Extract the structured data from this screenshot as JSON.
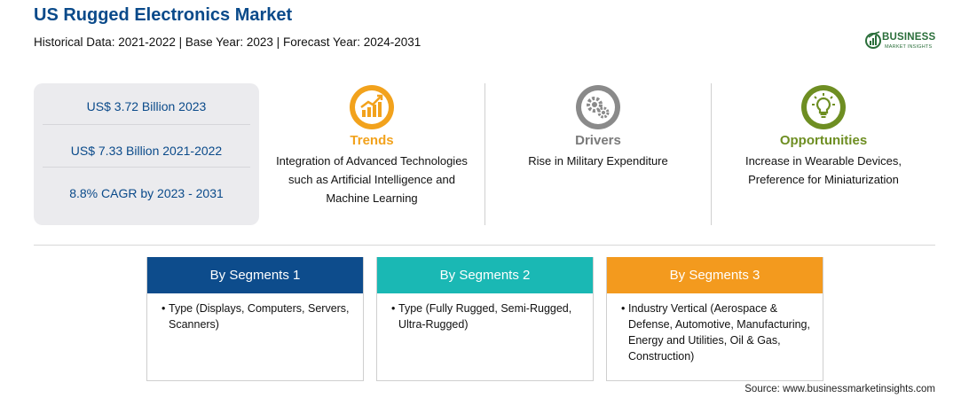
{
  "header": {
    "title": "US Rugged Electronics Market",
    "subtitle": "Historical Data: 2021-2022 | Base Year: 2023 | Forecast Year: 2024-2031"
  },
  "logo": {
    "word": "BUSINESS",
    "sub": "MARKET INSIGHTS",
    "color": "#2a6e3a"
  },
  "stats": [
    "US$ 3.72 Billion 2023",
    "US$ 7.33 Billion 2021-2022",
    "8.8% CAGR by 2023 - 2031"
  ],
  "columns": {
    "trends": {
      "icon": "growth-chart-icon",
      "heading": "Trends",
      "text": "Integration of Advanced Technologies such as Artificial Intelligence and Machine Learning",
      "color": "#f2a21c"
    },
    "drivers": {
      "icon": "gears-icon",
      "heading": "Drivers",
      "text": "Rise in Military Expenditure",
      "color": "#7a7a7a"
    },
    "opportunities": {
      "icon": "lightbulb-icon",
      "heading": "Opportunities",
      "text": "Increase in Wearable Devices, Preference for Miniaturization",
      "color": "#6e8e22"
    }
  },
  "segments": [
    {
      "heading": "By Segments 1",
      "bullet": "•",
      "text": "Type (Displays, Computers, Servers, Scanners)",
      "color": "#0d4c8c"
    },
    {
      "heading": "By Segments 2",
      "bullet": "•",
      "text": "Type (Fully Rugged, Semi-Rugged, Ultra-Rugged)",
      "color": "#1ab8b4"
    },
    {
      "heading": "By Segments 3",
      "bullet": "•",
      "text": "Industry Vertical (Aerospace & Defense, Automotive, Manufacturing, Energy and Utilities, Oil & Gas, Construction)",
      "color": "#f39a1e"
    }
  ],
  "source": "Source: www.businessmarketinsights.com"
}
